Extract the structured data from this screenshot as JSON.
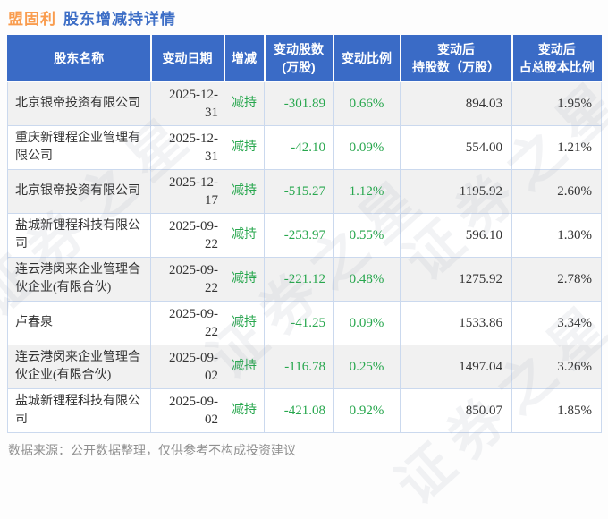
{
  "page": {
    "title_stock": "盟固利",
    "title_rest": "股东增减持详情"
  },
  "table": {
    "columns": [
      "股东名称",
      "变动日期",
      "增减",
      "变动股数\n(万股)",
      "变动比例",
      "变动后\n持股数（万股）",
      "变动后\n占总股本比例"
    ],
    "rows": [
      {
        "name": "北京银帝投资有限公司",
        "date": "2025-12-31",
        "direction": "减持",
        "change_shares": "-301.89",
        "change_ratio": "0.66%",
        "shares_after": "894.03",
        "capital_ratio": "1.95%"
      },
      {
        "name": "重庆新锂程企业管理有限公司",
        "date": "2025-12-31",
        "direction": "减持",
        "change_shares": "-42.10",
        "change_ratio": "0.09%",
        "shares_after": "554.00",
        "capital_ratio": "1.21%"
      },
      {
        "name": "北京银帝投资有限公司",
        "date": "2025-12-17",
        "direction": "减持",
        "change_shares": "-515.27",
        "change_ratio": "1.12%",
        "shares_after": "1195.92",
        "capital_ratio": "2.60%"
      },
      {
        "name": "盐城新锂程科技有限公司",
        "date": "2025-09-22",
        "direction": "减持",
        "change_shares": "-253.97",
        "change_ratio": "0.55%",
        "shares_after": "596.10",
        "capital_ratio": "1.30%"
      },
      {
        "name": "连云港闵来企业管理合伙企业(有限合伙)",
        "date": "2025-09-22",
        "direction": "减持",
        "change_shares": "-221.12",
        "change_ratio": "0.48%",
        "shares_after": "1275.92",
        "capital_ratio": "2.78%"
      },
      {
        "name": "卢春泉",
        "date": "2025-09-22",
        "direction": "减持",
        "change_shares": "-41.25",
        "change_ratio": "0.09%",
        "shares_after": "1533.86",
        "capital_ratio": "3.34%"
      },
      {
        "name": "连云港闵来企业管理合伙企业(有限合伙)",
        "date": "2025-09-02",
        "direction": "减持",
        "change_shares": "-116.78",
        "change_ratio": "0.25%",
        "shares_after": "1497.04",
        "capital_ratio": "3.26%"
      },
      {
        "name": "盐城新锂程科技有限公司",
        "date": "2025-09-02",
        "direction": "减持",
        "change_shares": "-421.08",
        "change_ratio": "0.92%",
        "shares_after": "850.07",
        "capital_ratio": "1.85%"
      }
    ]
  },
  "chart_data": {
    "type": "table",
    "title": "盟固利 股东增减持详情",
    "columns": [
      "股东名称",
      "变动日期",
      "增减",
      "变动股数(万股)",
      "变动比例",
      "变动后持股数（万股）",
      "变动后占总股本比例"
    ],
    "rows": [
      [
        "北京银帝投资有限公司",
        "2025-12-31",
        "减持",
        -301.89,
        "0.66%",
        894.03,
        "1.95%"
      ],
      [
        "重庆新锂程企业管理有限公司",
        "2025-12-31",
        "减持",
        -42.1,
        "0.09%",
        554.0,
        "1.21%"
      ],
      [
        "北京银帝投资有限公司",
        "2025-12-17",
        "减持",
        -515.27,
        "1.12%",
        1195.92,
        "2.60%"
      ],
      [
        "盐城新锂程科技有限公司",
        "2025-09-22",
        "减持",
        -253.97,
        "0.55%",
        596.1,
        "1.30%"
      ],
      [
        "连云港闵来企业管理合伙企业(有限合伙)",
        "2025-09-22",
        "减持",
        -221.12,
        "0.48%",
        1275.92,
        "2.78%"
      ],
      [
        "卢春泉",
        "2025-09-22",
        "减持",
        -41.25,
        "0.09%",
        1533.86,
        "3.34%"
      ],
      [
        "连云港闵来企业管理合伙企业(有限合伙)",
        "2025-09-02",
        "减持",
        -116.78,
        "0.25%",
        1497.04,
        "3.26%"
      ],
      [
        "盐城新锂程科技有限公司",
        "2025-09-02",
        "减持",
        -421.08,
        "0.92%",
        850.07,
        "1.85%"
      ]
    ]
  },
  "footer": {
    "source_note": "数据来源：公开数据整理，仅供参考不构成投资建议"
  },
  "watermark": {
    "text": "证券之星"
  },
  "colors": {
    "title_stock": "#F99C4E",
    "title_rest": "#3D6EC6",
    "header_bg": "#3A6BC6",
    "reduce_green": "#28A74E",
    "row_alt_bg": "#F1F1F1",
    "grid_border": "#CBD9EE",
    "footer_text": "#8F8F8F"
  }
}
